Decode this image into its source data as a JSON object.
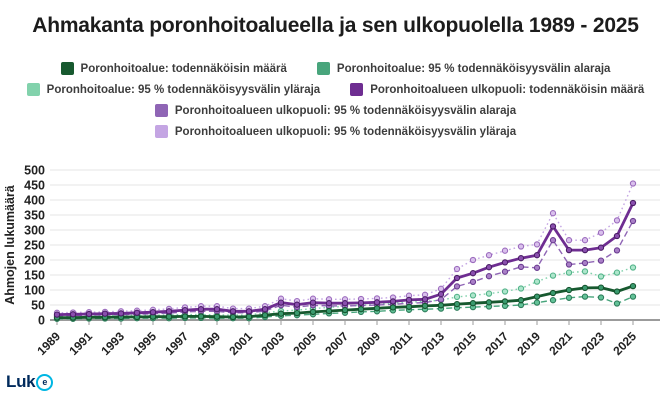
{
  "title": "Ahmakanta poronhoitoalueella ja sen ulkopuolella 1989 - 2025",
  "logo": {
    "text": "Luk",
    "mark": "e",
    "navy": "#002a5c",
    "cyan": "#00b6e3"
  },
  "chart_data": {
    "type": "line",
    "title": "Ahmakanta poronhoitoalueella ja sen ulkopuolella 1989 - 2025",
    "xlabel": "",
    "ylabel": "Ahmojen lukumäärä",
    "ylim": [
      0,
      500
    ],
    "ytick_step": 50,
    "grid": true,
    "legend_position": "top",
    "x": [
      1989,
      1990,
      1991,
      1992,
      1993,
      1994,
      1995,
      1996,
      1997,
      1998,
      1999,
      2000,
      2001,
      2002,
      2003,
      2004,
      2005,
      2006,
      2007,
      2008,
      2009,
      2010,
      2011,
      2012,
      2013,
      2014,
      2015,
      2016,
      2017,
      2018,
      2019,
      2020,
      2021,
      2022,
      2023,
      2024,
      2025
    ],
    "xtick_labels": [
      1989,
      1991,
      1993,
      1995,
      1997,
      1999,
      2001,
      2003,
      2005,
      2007,
      2009,
      2011,
      2013,
      2015,
      2017,
      2019,
      2021,
      2023,
      2025
    ],
    "series": [
      {
        "name": "Poronhoitoalue: todennäköisin määrä",
        "color": "#17592f",
        "style": "solid",
        "width": 2.8,
        "marker_fill": "#3a9a6e",
        "marker_stroke": "#14532d",
        "values": [
          8,
          8,
          9,
          9,
          10,
          10,
          11,
          11,
          12,
          12,
          11,
          10,
          11,
          16,
          21,
          23,
          27,
          30,
          33,
          36,
          39,
          42,
          44,
          47,
          49,
          53,
          56,
          59,
          62,
          66,
          78,
          90,
          100,
          107,
          108,
          95,
          113
        ]
      },
      {
        "name": "Poronhoitoalue: 95 % todennäköisyysvälin alaraja",
        "color": "#48a57c",
        "style": "dashed",
        "width": 1.4,
        "marker_fill": "#63c298",
        "marker_stroke": "#2e7d5b",
        "values": [
          4,
          4,
          5,
          5,
          5,
          6,
          6,
          6,
          7,
          7,
          6,
          6,
          6,
          10,
          14,
          16,
          19,
          22,
          24,
          27,
          29,
          32,
          34,
          36,
          38,
          41,
          43,
          45,
          47,
          50,
          58,
          66,
          74,
          78,
          75,
          55,
          78
        ]
      },
      {
        "name": "Poronhoitoalue: 95 % todennäköisyysvälin yläraja",
        "color": "#82d2ac",
        "style": "dotted",
        "width": 1.4,
        "marker_fill": "#aee6cc",
        "marker_stroke": "#53b389",
        "values": [
          13,
          13,
          14,
          14,
          15,
          16,
          16,
          17,
          18,
          18,
          17,
          16,
          17,
          24,
          30,
          33,
          38,
          42,
          46,
          49,
          53,
          56,
          59,
          62,
          66,
          77,
          82,
          88,
          95,
          105,
          128,
          148,
          158,
          162,
          145,
          158,
          175
        ]
      },
      {
        "name": "Poronhoitoalueen ulkopuoli: todennäköisin määrä",
        "color": "#6e2d91",
        "style": "solid",
        "width": 2.8,
        "marker_fill": "#8a4fae",
        "marker_stroke": "#4a1d66",
        "values": [
          18,
          19,
          20,
          21,
          22,
          24,
          26,
          29,
          33,
          36,
          36,
          29,
          29,
          36,
          58,
          51,
          58,
          56,
          56,
          57,
          59,
          62,
          67,
          69,
          86,
          140,
          156,
          176,
          192,
          206,
          216,
          312,
          233,
          233,
          241,
          280,
          390
        ]
      },
      {
        "name": "Poronhoitoalueen ulkopuoli: 95 % todennäköisyysvälin alaraja",
        "color": "#8f65b5",
        "style": "dashed",
        "width": 1.4,
        "marker_fill": "#a97fc7",
        "marker_stroke": "#6b3d91",
        "values": [
          14,
          15,
          16,
          17,
          18,
          19,
          21,
          23,
          27,
          29,
          29,
          24,
          24,
          30,
          49,
          43,
          49,
          47,
          47,
          48,
          50,
          52,
          56,
          58,
          68,
          112,
          127,
          146,
          161,
          177,
          174,
          266,
          185,
          190,
          198,
          232,
          330
        ]
      },
      {
        "name": "Poronhoitoalueen ulkopuoli: 95 % todennäköisyysvälin yläraja",
        "color": "#c4a5e3",
        "style": "dotted",
        "width": 1.4,
        "marker_fill": "#d9c0ec",
        "marker_stroke": "#9b6bbd",
        "values": [
          24,
          25,
          26,
          27,
          29,
          31,
          34,
          37,
          42,
          46,
          46,
          38,
          38,
          46,
          71,
          63,
          71,
          69,
          69,
          70,
          72,
          75,
          81,
          84,
          104,
          170,
          200,
          216,
          231,
          245,
          252,
          356,
          266,
          266,
          291,
          332,
          455
        ]
      }
    ]
  }
}
